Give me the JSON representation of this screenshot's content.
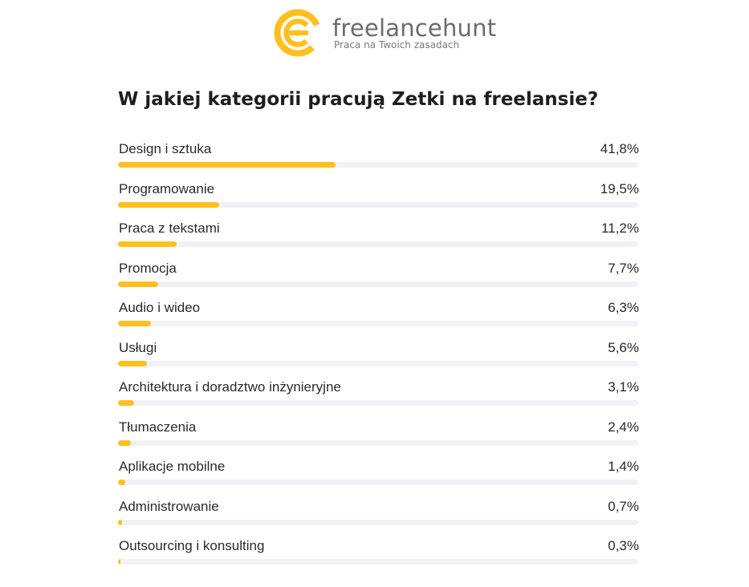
{
  "brand": {
    "name": "freelancehunt",
    "tagline": "Praca na Twoich zasadach",
    "accent_color": "#ffbf1f",
    "logo_icon": "freelancehunt-logo-icon"
  },
  "chart_data": {
    "type": "bar",
    "orientation": "horizontal",
    "title": "W jakiej kategorii pracują Zetki na freelansie?",
    "xlabel": "",
    "ylabel": "",
    "xlim": [
      0,
      100
    ],
    "grid": false,
    "legend": "none",
    "bar_color": "#ffbf1f",
    "track_color": "#f1f2f6",
    "categories": [
      "Design i sztuka",
      "Programowanie",
      "Praca z tekstami",
      "Promocja",
      "Audio i wideo",
      "Usługi",
      "Architektura i doradztwo inżynieryjne",
      "Tłumaczenia",
      "Aplikacje mobilne",
      "Administrowanie",
      "Outsourcing i konsulting"
    ],
    "values": [
      41.8,
      19.5,
      11.2,
      7.7,
      6.3,
      5.6,
      3.1,
      2.4,
      1.4,
      0.7,
      0.3
    ],
    "value_labels": [
      "41,8%",
      "19,5%",
      "11,2%",
      "7,7%",
      "6,3%",
      "5,6%",
      "3,1%",
      "2,4%",
      "1,4%",
      "0,7%",
      "0,3%"
    ]
  }
}
